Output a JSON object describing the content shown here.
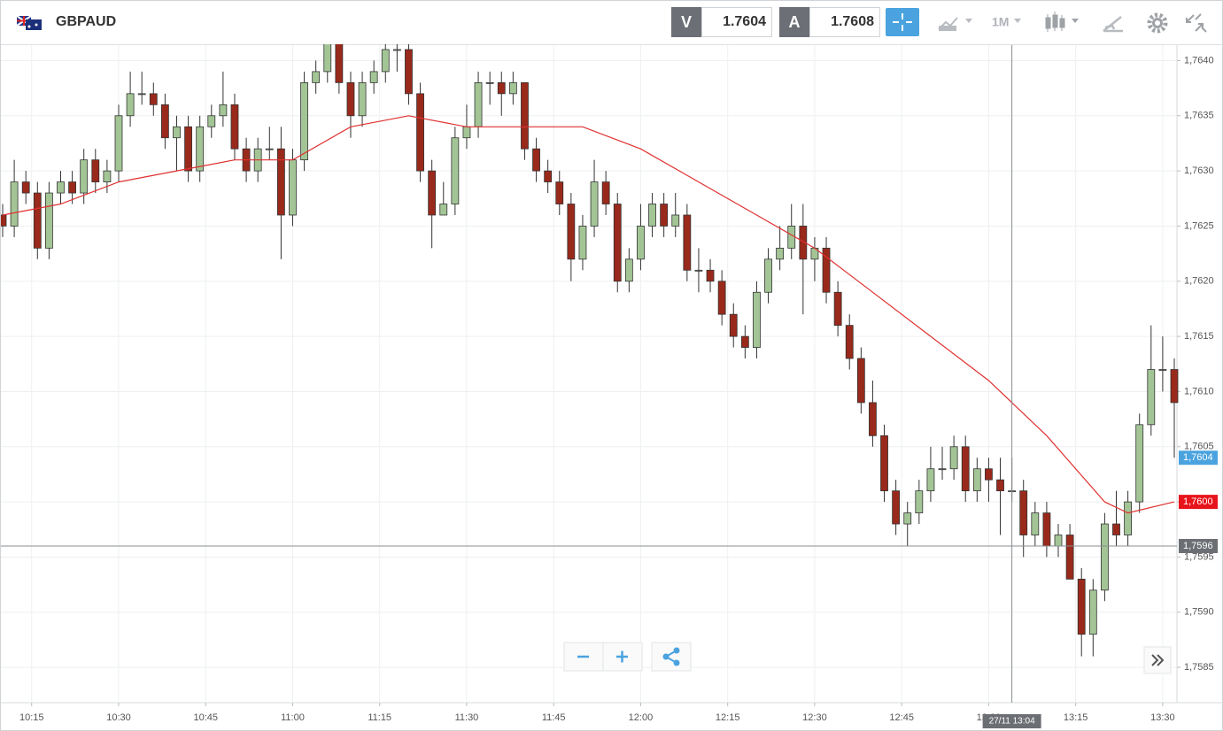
{
  "header": {
    "symbol": "GBPAUD",
    "bid_label": "V",
    "bid": "1.7604",
    "ask_label": "A",
    "ask": "1.7608",
    "timeframe": "1M"
  },
  "chart_data": {
    "type": "candlestick",
    "x": [
      "10:10",
      "10:12",
      "10:14",
      "10:16",
      "10:18",
      "10:20",
      "10:22",
      "10:24",
      "10:26",
      "10:28",
      "10:30",
      "10:32",
      "10:34",
      "10:36",
      "10:38",
      "10:40",
      "10:42",
      "10:44",
      "10:46",
      "10:48",
      "10:50",
      "10:52",
      "10:54",
      "10:56",
      "10:58",
      "11:00",
      "11:02",
      "11:04",
      "11:06",
      "11:08",
      "11:10",
      "11:12",
      "11:14",
      "11:16",
      "11:18",
      "11:20",
      "11:22",
      "11:24",
      "11:26",
      "11:28",
      "11:30",
      "11:32",
      "11:34",
      "11:36",
      "11:38",
      "11:40",
      "11:42",
      "11:44",
      "11:46",
      "11:48",
      "11:50",
      "11:52",
      "11:54",
      "11:56",
      "11:58",
      "12:00",
      "12:02",
      "12:04",
      "12:06",
      "12:08",
      "12:10",
      "12:12",
      "12:14",
      "12:16",
      "12:18",
      "12:20",
      "12:22",
      "12:24",
      "12:26",
      "12:28",
      "12:30",
      "12:32",
      "12:34",
      "12:36",
      "12:38",
      "12:40",
      "12:42",
      "12:44",
      "12:46",
      "12:48",
      "12:50",
      "12:52",
      "12:54",
      "12:56",
      "12:58",
      "13:00",
      "13:02",
      "13:04",
      "13:06",
      "13:08",
      "13:10",
      "13:12",
      "13:14",
      "13:16",
      "13:18",
      "13:20",
      "13:22",
      "13:24",
      "13:26",
      "13:28",
      "13:30",
      "13:32"
    ],
    "open": [
      1.7626,
      1.7625,
      1.7629,
      1.7628,
      1.7623,
      1.7628,
      1.7629,
      1.7628,
      1.7631,
      1.7629,
      1.763,
      1.7635,
      1.7637,
      1.7637,
      1.7636,
      1.7633,
      1.7634,
      1.763,
      1.7634,
      1.7635,
      1.7636,
      1.7632,
      1.763,
      1.7632,
      1.7632,
      1.7626,
      1.7631,
      1.7638,
      1.7639,
      1.7642,
      1.7638,
      1.7635,
      1.7638,
      1.7639,
      1.7641,
      1.7641,
      1.7637,
      1.763,
      1.7626,
      1.7627,
      1.7633,
      1.7634,
      1.7638,
      1.7638,
      1.7637,
      1.7638,
      1.7632,
      1.763,
      1.7629,
      1.7627,
      1.7622,
      1.7625,
      1.7629,
      1.7627,
      1.762,
      1.7622,
      1.7625,
      1.7627,
      1.7625,
      1.7626,
      1.7621,
      1.7621,
      1.762,
      1.7617,
      1.7615,
      1.7614,
      1.7619,
      1.7622,
      1.7623,
      1.7625,
      1.7622,
      1.7623,
      1.7619,
      1.7616,
      1.7613,
      1.7609,
      1.7606,
      1.7601,
      1.7598,
      1.7599,
      1.7601,
      1.7603,
      1.7603,
      1.7605,
      1.7601,
      1.7603,
      1.7602,
      1.7601,
      1.7601,
      1.7597,
      1.7599,
      1.7596,
      1.7597,
      1.7593,
      1.7588,
      1.7592,
      1.7598,
      1.7597,
      1.76,
      1.7607,
      1.7612,
      1.7612
    ],
    "high": [
      1.7627,
      1.7631,
      1.763,
      1.7629,
      1.7629,
      1.763,
      1.763,
      1.7632,
      1.7632,
      1.7631,
      1.7636,
      1.7639,
      1.7639,
      1.7638,
      1.7637,
      1.7635,
      1.7635,
      1.7635,
      1.7636,
      1.7639,
      1.7637,
      1.7633,
      1.7633,
      1.7634,
      1.7634,
      1.7632,
      1.7639,
      1.764,
      1.7642,
      1.7642,
      1.7639,
      1.7639,
      1.764,
      1.7642,
      1.7642,
      1.7642,
      1.7638,
      1.7631,
      1.7629,
      1.7634,
      1.7636,
      1.7639,
      1.7639,
      1.7639,
      1.7639,
      1.7638,
      1.7633,
      1.7631,
      1.763,
      1.7628,
      1.7626,
      1.7631,
      1.763,
      1.7628,
      1.7623,
      1.7627,
      1.7628,
      1.7628,
      1.7628,
      1.7627,
      1.7623,
      1.7622,
      1.7621,
      1.7618,
      1.7616,
      1.762,
      1.7623,
      1.7625,
      1.7627,
      1.7627,
      1.7624,
      1.7624,
      1.762,
      1.7617,
      1.7614,
      1.7611,
      1.7607,
      1.7602,
      1.76,
      1.7602,
      1.7605,
      1.7605,
      1.7606,
      1.7606,
      1.7604,
      1.7604,
      1.7604,
      1.7604,
      1.7602,
      1.76,
      1.76,
      1.7598,
      1.7598,
      1.7594,
      1.7593,
      1.7599,
      1.7601,
      1.7601,
      1.7608,
      1.7616,
      1.7615,
      1.7613
    ],
    "low": [
      1.7624,
      1.7624,
      1.7627,
      1.7622,
      1.7622,
      1.7627,
      1.7627,
      1.7627,
      1.7628,
      1.7628,
      1.7629,
      1.7634,
      1.7636,
      1.7635,
      1.7632,
      1.763,
      1.7629,
      1.7629,
      1.7633,
      1.7634,
      1.7631,
      1.7629,
      1.7629,
      1.7631,
      1.7622,
      1.7625,
      1.763,
      1.7637,
      1.7638,
      1.7637,
      1.7633,
      1.7634,
      1.7637,
      1.7638,
      1.7639,
      1.7636,
      1.7629,
      1.7623,
      1.7626,
      1.7626,
      1.7632,
      1.7633,
      1.7636,
      1.7635,
      1.7636,
      1.7631,
      1.7629,
      1.7628,
      1.7626,
      1.762,
      1.7621,
      1.7624,
      1.7626,
      1.7619,
      1.7619,
      1.7621,
      1.7624,
      1.7624,
      1.7624,
      1.762,
      1.7619,
      1.7619,
      1.7616,
      1.7614,
      1.7613,
      1.7613,
      1.7618,
      1.7621,
      1.7622,
      1.7617,
      1.762,
      1.7618,
      1.7615,
      1.7612,
      1.7608,
      1.7605,
      1.76,
      1.7597,
      1.7596,
      1.7598,
      1.76,
      1.7602,
      1.7602,
      1.76,
      1.76,
      1.76,
      1.7597,
      1.76,
      1.7595,
      1.7596,
      1.7595,
      1.7595,
      1.7593,
      1.7586,
      1.7586,
      1.7591,
      1.7596,
      1.7596,
      1.7599,
      1.7606,
      1.761,
      1.7604
    ],
    "close": [
      1.7625,
      1.7629,
      1.7628,
      1.7623,
      1.7628,
      1.7629,
      1.7628,
      1.7631,
      1.7629,
      1.763,
      1.7635,
      1.7637,
      1.7637,
      1.7636,
      1.7633,
      1.7634,
      1.763,
      1.7634,
      1.7635,
      1.7636,
      1.7632,
      1.763,
      1.7632,
      1.7632,
      1.7626,
      1.7631,
      1.7638,
      1.7639,
      1.7642,
      1.7638,
      1.7635,
      1.7638,
      1.7639,
      1.7641,
      1.7641,
      1.7637,
      1.763,
      1.7626,
      1.7627,
      1.7633,
      1.7634,
      1.7638,
      1.7638,
      1.7637,
      1.7638,
      1.7632,
      1.763,
      1.7629,
      1.7627,
      1.7622,
      1.7625,
      1.7629,
      1.7627,
      1.762,
      1.7622,
      1.7625,
      1.7627,
      1.7625,
      1.7626,
      1.7621,
      1.7621,
      1.762,
      1.7617,
      1.7615,
      1.7614,
      1.7619,
      1.7622,
      1.7623,
      1.7625,
      1.7622,
      1.7623,
      1.7619,
      1.7616,
      1.7613,
      1.7609,
      1.7606,
      1.7601,
      1.7598,
      1.7599,
      1.7601,
      1.7603,
      1.7603,
      1.7605,
      1.7601,
      1.7603,
      1.7602,
      1.7601,
      1.7601,
      1.7597,
      1.7599,
      1.7596,
      1.7597,
      1.7593,
      1.7588,
      1.7592,
      1.7598,
      1.7597,
      1.76,
      1.7607,
      1.7612,
      1.7612,
      1.7609
    ],
    "up_color": "#a3c596",
    "down_color": "#99291b",
    "moving_average": {
      "color": "#e03030",
      "x": [
        "10:10",
        "10:20",
        "10:30",
        "10:40",
        "10:50",
        "11:00",
        "11:10",
        "11:20",
        "11:30",
        "11:40",
        "11:50",
        "12:00",
        "12:10",
        "12:20",
        "12:30",
        "12:40",
        "12:50",
        "13:00",
        "13:10",
        "13:20",
        "13:24",
        "13:32"
      ],
      "values": [
        1.7626,
        1.7627,
        1.7629,
        1.763,
        1.7631,
        1.7631,
        1.7634,
        1.7635,
        1.7634,
        1.7634,
        1.7634,
        1.7632,
        1.7629,
        1.7626,
        1.7623,
        1.7619,
        1.7615,
        1.7611,
        1.7606,
        1.76,
        1.7599,
        1.76
      ]
    },
    "xlim": [
      "10:10",
      "13:32"
    ],
    "xticks": [
      "10:15",
      "10:30",
      "10:45",
      "11:00",
      "11:15",
      "11:30",
      "11:45",
      "12:00",
      "12:15",
      "12:30",
      "12:45",
      "13:00",
      "13:15",
      "13:30"
    ],
    "ylim": [
      1.75818,
      1.76414
    ],
    "yticks": [
      {
        "value": 1.7585,
        "label": "1,7585"
      },
      {
        "value": 1.759,
        "label": "1,7590"
      },
      {
        "value": 1.7595,
        "label": "1,7595"
      },
      {
        "value": 1.76,
        "label": "1,7600"
      },
      {
        "value": 1.7605,
        "label": "1,7605"
      },
      {
        "value": 1.761,
        "label": "1,7610"
      },
      {
        "value": 1.7615,
        "label": "1,7615"
      },
      {
        "value": 1.762,
        "label": "1,7620"
      },
      {
        "value": 1.7625,
        "label": "1,7625"
      },
      {
        "value": 1.763,
        "label": "1,7630"
      },
      {
        "value": 1.7635,
        "label": "1,7635"
      },
      {
        "value": 1.764,
        "label": "1,7640"
      }
    ],
    "grid": true,
    "price_tags": [
      {
        "value": 1.7604,
        "label": "1,7604",
        "color": "#4aa3df"
      },
      {
        "value": 1.76,
        "label": "1,7600",
        "color": "#e8141b"
      }
    ],
    "crosshair": {
      "x": "13:04",
      "x_label": "27/11 13:04",
      "y": {
        "value": 1.7596,
        "label": "1,7596"
      },
      "color": "#6b6e73"
    }
  }
}
